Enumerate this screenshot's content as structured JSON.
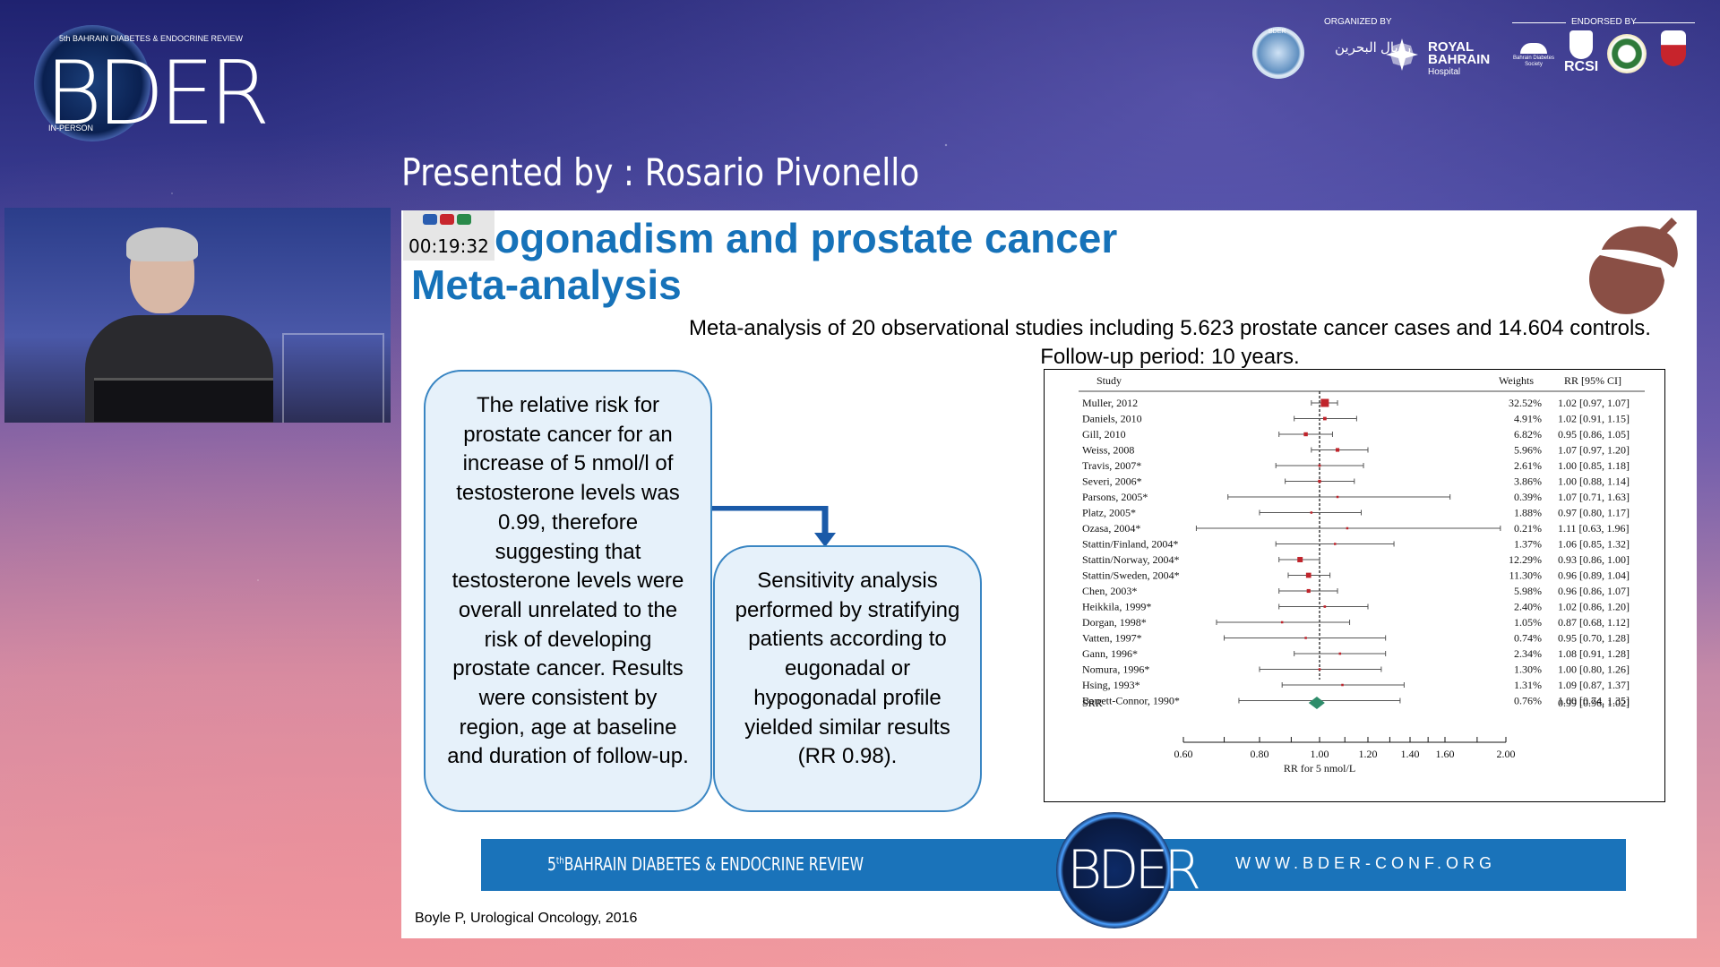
{
  "header": {
    "conference_small": "5th BAHRAIN DIABETES & ENDOCRINE REVIEW",
    "conference_logo": "BDER",
    "conference_mode": "IN-PERSON",
    "presenter_line": "Presented by : Rosario Pivonello",
    "organized_label": "ORGANIZED BY",
    "endorsed_label": "ENDORSED BY",
    "bder_badge": "BDER",
    "org_arabic": "رويال البحرين",
    "org_name_1": "ROYAL",
    "org_name_2": "BAHRAIN",
    "org_name_3": "Hospital",
    "society_1": "Bahrain Diabetes Society",
    "rcsi": "RCSI"
  },
  "slide": {
    "timer": "00:19:32",
    "title_line1": "ogonadism and prostate cancer",
    "title_line2": "Meta-analysis",
    "subtitle_line1": "Meta-analysis of 20 observational studies including 5.623 prostate cancer cases and 14.604 controls.",
    "subtitle_line2": "Follow-up period: 10 years.",
    "box1_text": "The relative risk for prostate cancer for an increase of 5 nmol/l of testosterone levels was 0.99, therefore suggesting that testosterone levels were overall unrelated to the risk of developing prostate cancer. Results were consistent by region, age at baseline and duration of follow-up.",
    "box2_text": "Sensitivity analysis performed by stratifying patients according to eugonadal or hypogonadal profile yielded similar results (RR 0.98).",
    "banner_left_pre": "5",
    "banner_left_sup": "th",
    "banner_left": "BAHRAIN DIABETES & ENDOCRINE REVIEW",
    "banner_logo": "BDER",
    "banner_right": "WWW.BDER-CONF.ORG",
    "citation": "Boyle P, Urological Oncology, 2016"
  },
  "chart_data": {
    "type": "forest",
    "header_study": "Study",
    "header_weights": "Weights",
    "header_rr": "RR [95% CI]",
    "xlabel": "RR for 5 nmol/L",
    "xticks": [
      "0.60",
      "0.80",
      "1.00",
      "1.20",
      "1.40",
      "1.60",
      "2.00"
    ],
    "xtick_values": [
      0.6,
      0.8,
      1.0,
      1.2,
      1.4,
      1.6,
      2.0
    ],
    "xlim": [
      0.6,
      2.0
    ],
    "studies": [
      {
        "name": "Muller, 2012",
        "weight": "32.52%",
        "rr_text": "1.02 [0.97, 1.07]",
        "rr": 1.02,
        "lo": 0.97,
        "hi": 1.07
      },
      {
        "name": "Daniels, 2010",
        "weight": "4.91%",
        "rr_text": "1.02 [0.91, 1.15]",
        "rr": 1.02,
        "lo": 0.91,
        "hi": 1.15
      },
      {
        "name": "Gill, 2010",
        "weight": "6.82%",
        "rr_text": "0.95 [0.86, 1.05]",
        "rr": 0.95,
        "lo": 0.86,
        "hi": 1.05
      },
      {
        "name": "Weiss, 2008",
        "weight": "5.96%",
        "rr_text": "1.07 [0.97, 1.20]",
        "rr": 1.07,
        "lo": 0.97,
        "hi": 1.2
      },
      {
        "name": "Travis, 2007*",
        "weight": "2.61%",
        "rr_text": "1.00 [0.85, 1.18]",
        "rr": 1.0,
        "lo": 0.85,
        "hi": 1.18
      },
      {
        "name": "Severi, 2006*",
        "weight": "3.86%",
        "rr_text": "1.00 [0.88, 1.14]",
        "rr": 1.0,
        "lo": 0.88,
        "hi": 1.14
      },
      {
        "name": "Parsons, 2005*",
        "weight": "0.39%",
        "rr_text": "1.07 [0.71, 1.63]",
        "rr": 1.07,
        "lo": 0.71,
        "hi": 1.63
      },
      {
        "name": "Platz, 2005*",
        "weight": "1.88%",
        "rr_text": "0.97 [0.80, 1.17]",
        "rr": 0.97,
        "lo": 0.8,
        "hi": 1.17
      },
      {
        "name": "Ozasa, 2004*",
        "weight": "0.21%",
        "rr_text": "1.11 [0.63, 1.96]",
        "rr": 1.11,
        "lo": 0.63,
        "hi": 1.96
      },
      {
        "name": "Stattin/Finland, 2004*",
        "weight": "1.37%",
        "rr_text": "1.06 [0.85, 1.32]",
        "rr": 1.06,
        "lo": 0.85,
        "hi": 1.32
      },
      {
        "name": "Stattin/Norway, 2004*",
        "weight": "12.29%",
        "rr_text": "0.93 [0.86, 1.00]",
        "rr": 0.93,
        "lo": 0.86,
        "hi": 1.0
      },
      {
        "name": "Stattin/Sweden, 2004*",
        "weight": "11.30%",
        "rr_text": "0.96 [0.89, 1.04]",
        "rr": 0.96,
        "lo": 0.89,
        "hi": 1.04
      },
      {
        "name": "Chen, 2003*",
        "weight": "5.98%",
        "rr_text": "0.96 [0.86, 1.07]",
        "rr": 0.96,
        "lo": 0.86,
        "hi": 1.07
      },
      {
        "name": "Heikkila, 1999*",
        "weight": "2.40%",
        "rr_text": "1.02 [0.86, 1.20]",
        "rr": 1.02,
        "lo": 0.86,
        "hi": 1.2
      },
      {
        "name": "Dorgan, 1998*",
        "weight": "1.05%",
        "rr_text": "0.87 [0.68, 1.12]",
        "rr": 0.87,
        "lo": 0.68,
        "hi": 1.12
      },
      {
        "name": "Vatten, 1997*",
        "weight": "0.74%",
        "rr_text": "0.95 [0.70, 1.28]",
        "rr": 0.95,
        "lo": 0.7,
        "hi": 1.28
      },
      {
        "name": "Gann, 1996*",
        "weight": "2.34%",
        "rr_text": "1.08 [0.91, 1.28]",
        "rr": 1.08,
        "lo": 0.91,
        "hi": 1.28
      },
      {
        "name": "Nomura, 1996*",
        "weight": "1.30%",
        "rr_text": "1.00 [0.80, 1.26]",
        "rr": 1.0,
        "lo": 0.8,
        "hi": 1.26
      },
      {
        "name": "Hsing, 1993*",
        "weight": "1.31%",
        "rr_text": "1.09 [0.87, 1.37]",
        "rr": 1.09,
        "lo": 0.87,
        "hi": 1.37
      },
      {
        "name": "Barrett-Connor, 1990*",
        "weight": "0.76%",
        "rr_text": "1.00 [0.74, 1.35]",
        "rr": 1.0,
        "lo": 0.74,
        "hi": 1.35
      }
    ],
    "summary": {
      "name": "SRR",
      "rr_text": "0.99 [0.96, 1.02]",
      "rr": 0.99,
      "lo": 0.96,
      "hi": 1.02
    },
    "marker_color": "#c0242b",
    "summary_color": "#2e8c6a"
  },
  "colors": {
    "title_blue": "#1672b9",
    "box_border": "#3a86c3",
    "banner_blue": "#1a73ba",
    "acorn": "#8a4f45"
  }
}
